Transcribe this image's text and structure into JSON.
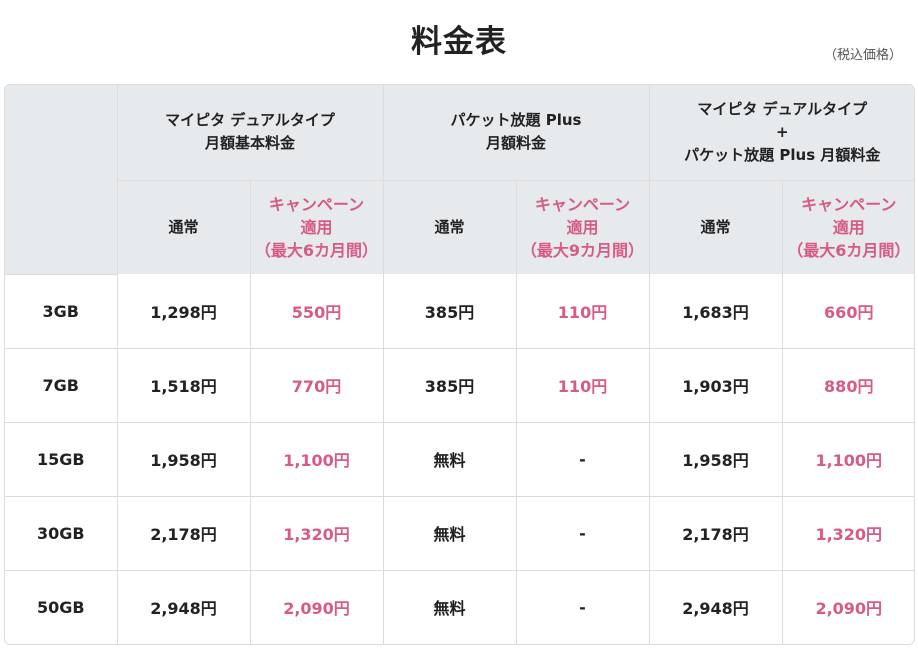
{
  "page": {
    "title": "料金表",
    "tax_note": "（税込価格）"
  },
  "header": {
    "groups": [
      {
        "line1": "マイピタ デュアルタイプ",
        "line2": "月額基本料金",
        "line3": ""
      },
      {
        "line1": "パケット放題 Plus",
        "line2": "月額料金",
        "line3": ""
      },
      {
        "line1": "マイピタ デュアルタイプ",
        "line2": "+",
        "line3": "パケット放題 Plus 月額料金"
      }
    ],
    "sub": [
      {
        "regular": "通常",
        "camp1": "キャンペーン",
        "camp2": "適用",
        "camp3": "（最大6カ月間）"
      },
      {
        "regular": "通常",
        "camp1": "キャンペーン",
        "camp2": "適用",
        "camp3": "（最大9カ月間）"
      },
      {
        "regular": "通常",
        "camp1": "キャンペーン",
        "camp2": "適用",
        "camp3": "（最大6カ月間）"
      }
    ]
  },
  "colors": {
    "header_bg": "#e6eaed",
    "campaign": "#d85a86",
    "border": "#dcdcdc",
    "text": "#222222"
  },
  "rows": [
    {
      "plan": "3GB",
      "cells": [
        "1,298円",
        "550円",
        "385円",
        "110円",
        "1,683円",
        "660円"
      ]
    },
    {
      "plan": "7GB",
      "cells": [
        "1,518円",
        "770円",
        "385円",
        "110円",
        "1,903円",
        "880円"
      ]
    },
    {
      "plan": "15GB",
      "cells": [
        "1,958円",
        "1,100円",
        "無料",
        "-",
        "1,958円",
        "1,100円"
      ]
    },
    {
      "plan": "30GB",
      "cells": [
        "2,178円",
        "1,320円",
        "無料",
        "-",
        "2,178円",
        "1,320円"
      ]
    },
    {
      "plan": "50GB",
      "cells": [
        "2,948円",
        "2,090円",
        "無料",
        "-",
        "2,948円",
        "2,090円"
      ]
    }
  ]
}
